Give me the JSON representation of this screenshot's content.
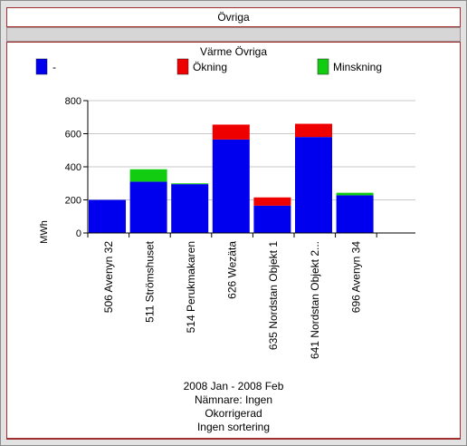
{
  "header": {
    "title": "Övriga"
  },
  "colors": {
    "base": "#0000ee",
    "increase": "#ee0000",
    "decrease": "#11cc11"
  },
  "chart_data": {
    "type": "bar",
    "stacked": true,
    "title": "Värme Övriga",
    "ylabel": "MWh",
    "xlabel": "",
    "ylim": [
      0,
      800
    ],
    "yticks": [
      0,
      200,
      400,
      600,
      800
    ],
    "grid": true,
    "legend": "top",
    "categories": [
      "506 Avenyn 32",
      "511 Strömshuset",
      "514 Perukmakaren",
      "626 Wezäta",
      "635 Nordstan Objekt 1",
      "641 Nordstan Objekt 2...",
      "696 Avenyn 34"
    ],
    "series": [
      {
        "name": "-",
        "values": [
          200,
          310,
          295,
          565,
          165,
          580,
          228
        ]
      },
      {
        "name": "Ökning",
        "values": [
          0,
          0,
          0,
          90,
          50,
          80,
          0
        ]
      },
      {
        "name": "Minskning",
        "values": [
          0,
          75,
          5,
          0,
          0,
          0,
          15
        ]
      }
    ]
  },
  "footer": {
    "period": "2008 Jan - 2008 Feb",
    "denominator": "Nämnare: Ingen",
    "correction": "Okorrigerad",
    "sorting": "Ingen sortering"
  }
}
